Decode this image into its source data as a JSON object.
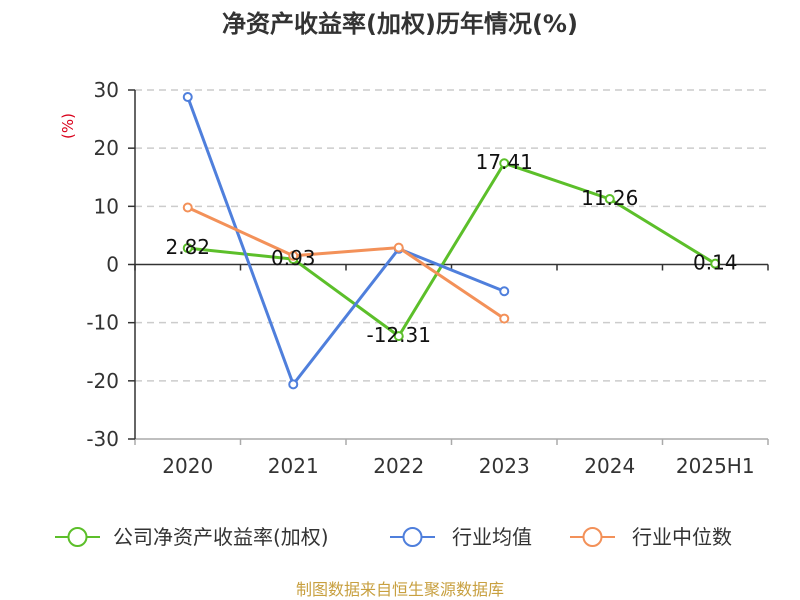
{
  "chart_data": {
    "type": "line",
    "title": "净资产收益率(加权)历年情况(%)",
    "xlabel": "",
    "ylabel": "(%)",
    "categories": [
      "2020",
      "2021",
      "2022",
      "2023",
      "2024",
      "2025H1"
    ],
    "ylim": [
      -30,
      30
    ],
    "yticks": [
      30,
      20,
      10,
      0,
      -10,
      -20,
      -30
    ],
    "grid": true,
    "legend_position": "bottom",
    "series": [
      {
        "name": "公司净资产收益率(加权)",
        "color": "#5cbf2a",
        "values": [
          2.82,
          0.93,
          -12.31,
          17.41,
          11.26,
          0.14
        ],
        "show_labels": true
      },
      {
        "name": "行业均值",
        "color": "#4f7fdc",
        "values": [
          28.8,
          -20.6,
          2.7,
          -4.6,
          null,
          null
        ],
        "show_labels": false
      },
      {
        "name": "行业中位数",
        "color": "#f39159",
        "values": [
          9.8,
          1.5,
          2.9,
          -9.3,
          null,
          null
        ],
        "show_labels": false
      }
    ]
  },
  "colors": {
    "ylabel": "#d9001b",
    "footer": "#c8a040",
    "grid": "#cccccc",
    "axis": "#333333"
  },
  "source_note": "制图数据来自恒生聚源数据库"
}
